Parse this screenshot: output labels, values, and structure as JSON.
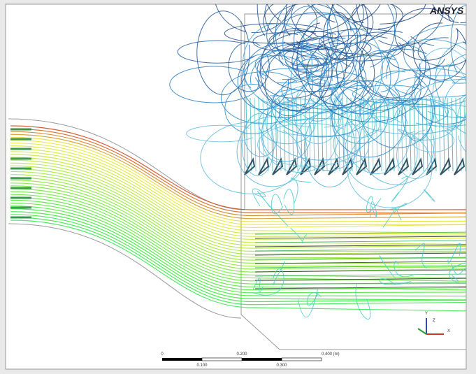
{
  "logo": "ANSYS",
  "scale_bar": {
    "top_labels": [
      "0",
      "0.200",
      "0.400 (m)"
    ],
    "bottom_labels": [
      "0.100",
      "0.300"
    ]
  },
  "triad": {
    "y": "Y",
    "z": "Z",
    "x": "X"
  }
}
